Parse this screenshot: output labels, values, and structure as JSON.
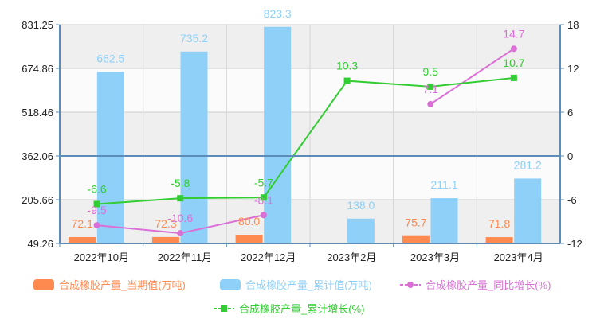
{
  "chart_data": {
    "type": "bar",
    "categories": [
      "2022年10月",
      "2022年11月",
      "2022年12月",
      "2023年2月",
      "2023年3月",
      "2023年4月"
    ],
    "y_left": {
      "ticks": [
        "49.26",
        "205.66",
        "362.06",
        "518.46",
        "674.86",
        "831.25"
      ],
      "ylim": [
        49.26,
        831.25
      ]
    },
    "y_right": {
      "ticks": [
        "-12",
        "-6",
        "0",
        "6",
        "12",
        "18"
      ],
      "ylim": [
        -12,
        18
      ]
    },
    "grid": true,
    "legend_position": "bottom",
    "colors": {
      "current": "#ff8a50",
      "cumulative": "#8fd0f8",
      "yoy": "#da70d6",
      "cum_growth": "#32cd32",
      "axis": "#5b8db8"
    },
    "series": [
      {
        "name": "合成橡胶产量_当期值(万吨)",
        "kind": "bar",
        "axis": "left",
        "values": [
          72.1,
          72.3,
          80.0,
          null,
          75.7,
          71.8
        ],
        "labels": [
          "72.1",
          "72.3",
          "80.0",
          "",
          "75.7",
          "71.8"
        ]
      },
      {
        "name": "合成橡胶产量_累计值(万吨)",
        "kind": "bar",
        "axis": "left",
        "values": [
          662.5,
          735.2,
          823.3,
          138.0,
          211.1,
          281.2
        ],
        "labels": [
          "662.5",
          "735.2",
          "823.3",
          "138.0",
          "211.1",
          "281.2"
        ]
      },
      {
        "name": "合成橡胶产量_同比增长(%)",
        "kind": "line",
        "axis": "right",
        "values": [
          -9.5,
          -10.6,
          -8.1,
          null,
          7.1,
          14.7
        ],
        "labels": [
          "-9.5",
          "-10.6",
          "-8.1",
          "",
          "7.1",
          "14.7"
        ]
      },
      {
        "name": "合成橡胶产量_累计增长(%)",
        "kind": "line",
        "axis": "right",
        "values": [
          -6.6,
          -5.8,
          -5.7,
          10.3,
          9.5,
          10.7
        ],
        "labels": [
          "-6.6",
          "-5.8",
          "-5.7",
          "10.3",
          "9.5",
          "10.7"
        ]
      }
    ]
  }
}
